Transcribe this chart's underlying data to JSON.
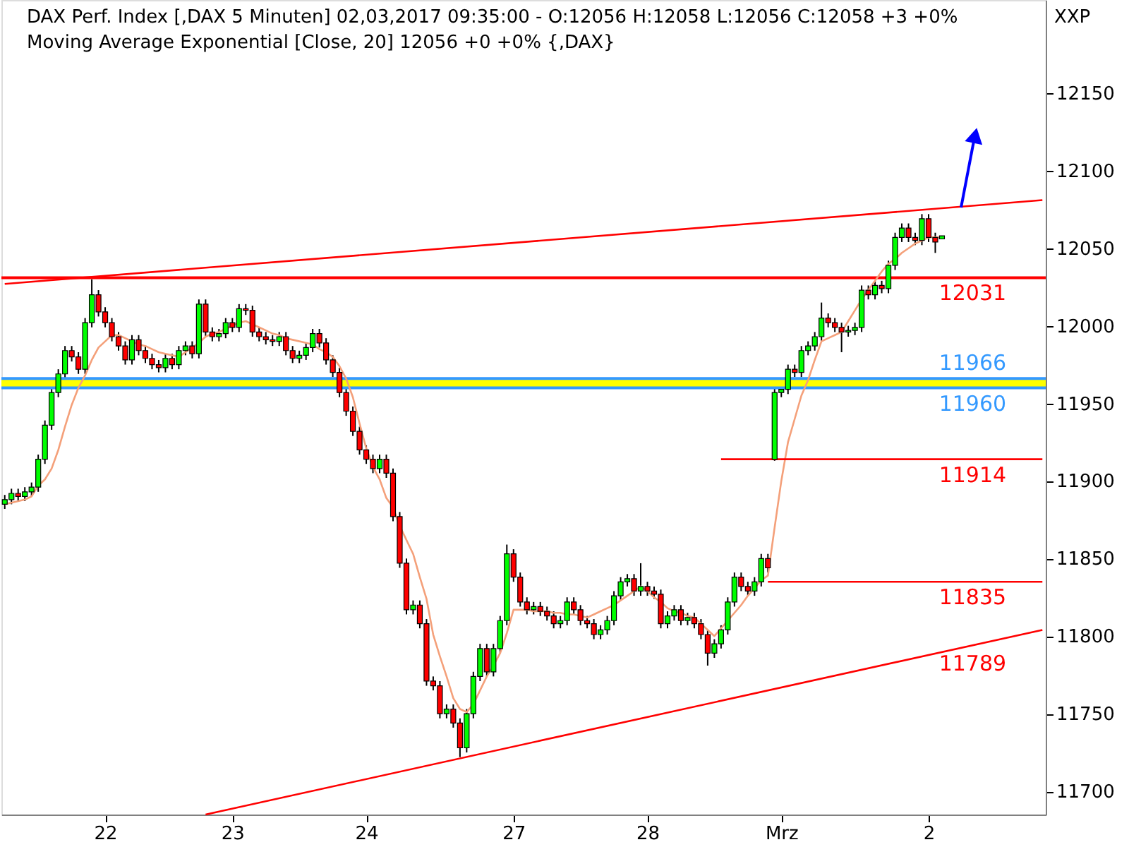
{
  "chart_data": {
    "type": "candlestick",
    "title": "DAX Perf. Index [,DAX  5 Minuten] 02,03,2017 09:35:00 - O:12056 H:12058 L:12056 C:12058 +3 +0%",
    "subtitle": "Moving Average Exponential [Close, 20] 12056 +0 +0% {,DAX}",
    "categories": [
      null,
      null,
      null,
      null,
      null,
      null,
      null,
      null,
      null,
      null,
      null,
      null,
      null,
      null,
      null,
      "22",
      null,
      null,
      null,
      null,
      null,
      null,
      null,
      null,
      null,
      null,
      null,
      null,
      null,
      null,
      null,
      null,
      null,
      null,
      "23",
      null,
      null,
      null,
      null,
      null,
      null,
      null,
      null,
      null,
      null,
      null,
      null,
      null,
      null,
      null,
      null,
      null,
      null,
      null,
      "24",
      null,
      null,
      null,
      null,
      null,
      null,
      null,
      null,
      null,
      null,
      null,
      null,
      null,
      null,
      null,
      null,
      null,
      null,
      null,
      null,
      null,
      "27",
      null,
      null,
      null,
      null,
      null,
      null,
      null,
      null,
      null,
      null,
      null,
      null,
      null,
      null,
      null,
      null,
      null,
      null,
      null,
      "28",
      null,
      null,
      null,
      null,
      null,
      null,
      null,
      null,
      null,
      null,
      null,
      null,
      null,
      null,
      null,
      null,
      null,
      null,
      null,
      "Mrz",
      null,
      null,
      null,
      null,
      null,
      null,
      null,
      null,
      null,
      null,
      null,
      null,
      null,
      null,
      null,
      null,
      null,
      null,
      null,
      null,
      null,
      "2",
      null,
      null,
      null,
      null,
      null,
      null,
      null,
      null,
      null,
      null,
      null,
      null,
      null,
      null,
      null,
      null,
      null
    ],
    "ohlc": [
      [
        11885,
        11891,
        11882,
        11888
      ],
      [
        11888,
        11895,
        11885,
        11892
      ],
      [
        11892,
        11895,
        11887,
        11890
      ],
      [
        11890,
        11896,
        11887,
        11893
      ],
      [
        11893,
        11899,
        11890,
        11896
      ],
      [
        11896,
        11917,
        11893,
        11914
      ],
      [
        11914,
        11939,
        11911,
        11936
      ],
      [
        11936,
        11960,
        11933,
        11957
      ],
      [
        11957,
        11972,
        11954,
        11969
      ],
      [
        11969,
        11987,
        11966,
        11984
      ],
      [
        11984,
        11987,
        11977,
        11980
      ],
      [
        11980,
        11983,
        11969,
        11972
      ],
      [
        11972,
        12005,
        11969,
        12002
      ],
      [
        12002,
        12030,
        11999,
        12020
      ],
      [
        12020,
        12023,
        12006,
        12009
      ],
      [
        12009,
        12012,
        11999,
        12002
      ],
      [
        12002,
        12005,
        11990,
        11993
      ],
      [
        11993,
        11996,
        11984,
        11987
      ],
      [
        11987,
        11990,
        11975,
        11978
      ],
      [
        11978,
        11994,
        11975,
        11991
      ],
      [
        11991,
        11994,
        11981,
        11984
      ],
      [
        11984,
        11987,
        11976,
        11979
      ],
      [
        11979,
        11982,
        11972,
        11975
      ],
      [
        11975,
        11978,
        11970,
        11973
      ],
      [
        11973,
        11982,
        11970,
        11979
      ],
      [
        11979,
        11982,
        11972,
        11975
      ],
      [
        11975,
        11987,
        11972,
        11984
      ],
      [
        11984,
        11990,
        11981,
        11987
      ],
      [
        11987,
        11990,
        11979,
        11982
      ],
      [
        11982,
        12017,
        11979,
        12014
      ],
      [
        12014,
        12017,
        11993,
        11996
      ],
      [
        11996,
        11999,
        11990,
        11993
      ],
      [
        11993,
        11998,
        11990,
        11995
      ],
      [
        11995,
        12005,
        11992,
        12002
      ],
      [
        12002,
        12005,
        11996,
        11999
      ],
      [
        11999,
        12014,
        11996,
        12011
      ],
      [
        12011,
        12014,
        12007,
        12010
      ],
      [
        12010,
        12013,
        11993,
        11996
      ],
      [
        11996,
        11999,
        11990,
        11993
      ],
      [
        11993,
        11996,
        11988,
        11991
      ],
      [
        11991,
        11994,
        11987,
        11990
      ],
      [
        11990,
        11996,
        11987,
        11993
      ],
      [
        11993,
        11996,
        11981,
        11984
      ],
      [
        11984,
        11987,
        11976,
        11979
      ],
      [
        11979,
        11984,
        11976,
        11981
      ],
      [
        11981,
        11989,
        11978,
        11986
      ],
      [
        11986,
        11998,
        11983,
        11995
      ],
      [
        11995,
        11998,
        11986,
        11989
      ],
      [
        11989,
        11992,
        11975,
        11978
      ],
      [
        11978,
        11981,
        11967,
        11970
      ],
      [
        11970,
        11973,
        11954,
        11957
      ],
      [
        11957,
        11960,
        11942,
        11945
      ],
      [
        11945,
        11948,
        11929,
        11932
      ],
      [
        11932,
        11935,
        11917,
        11920
      ],
      [
        11920,
        11923,
        11911,
        11914
      ],
      [
        11914,
        11917,
        11905,
        11908
      ],
      [
        11908,
        11917,
        11905,
        11914
      ],
      [
        11914,
        11917,
        11902,
        11905
      ],
      [
        11905,
        11908,
        11874,
        11877
      ],
      [
        11877,
        11880,
        11844,
        11847
      ],
      [
        11847,
        11850,
        11814,
        11817
      ],
      [
        11817,
        11823,
        11814,
        11820
      ],
      [
        11820,
        11823,
        11805,
        11808
      ],
      [
        11808,
        11811,
        11768,
        11771
      ],
      [
        11771,
        11774,
        11765,
        11768
      ],
      [
        11768,
        11771,
        11747,
        11750
      ],
      [
        11750,
        11756,
        11747,
        11753
      ],
      [
        11753,
        11756,
        11741,
        11744
      ],
      [
        11744,
        11747,
        11722,
        11728
      ],
      [
        11728,
        11753,
        11725,
        11750
      ],
      [
        11750,
        11777,
        11747,
        11774
      ],
      [
        11774,
        11795,
        11771,
        11792
      ],
      [
        11792,
        11795,
        11774,
        11777
      ],
      [
        11777,
        11795,
        11774,
        11792
      ],
      [
        11792,
        11813,
        11789,
        11810
      ],
      [
        11810,
        11859,
        11807,
        11853
      ],
      [
        11853,
        11856,
        11835,
        11838
      ],
      [
        11838,
        11841,
        11819,
        11822
      ],
      [
        11822,
        11825,
        11814,
        11817
      ],
      [
        11817,
        11822,
        11814,
        11819
      ],
      [
        11819,
        11822,
        11813,
        11816
      ],
      [
        11816,
        11819,
        11810,
        11813
      ],
      [
        11813,
        11816,
        11805,
        11808
      ],
      [
        11808,
        11813,
        11805,
        11810
      ],
      [
        11810,
        11825,
        11807,
        11822
      ],
      [
        11822,
        11825,
        11814,
        11817
      ],
      [
        11817,
        11820,
        11807,
        11810
      ],
      [
        11810,
        11813,
        11805,
        11808
      ],
      [
        11808,
        11811,
        11798,
        11801
      ],
      [
        11801,
        11807,
        11798,
        11804
      ],
      [
        11804,
        11813,
        11801,
        11810
      ],
      [
        11810,
        11829,
        11807,
        11826
      ],
      [
        11826,
        11838,
        11823,
        11835
      ],
      [
        11835,
        11840,
        11832,
        11837
      ],
      [
        11837,
        11840,
        11826,
        11829
      ],
      [
        11829,
        11847,
        11826,
        11832
      ],
      [
        11832,
        11835,
        11826,
        11829
      ],
      [
        11829,
        11832,
        11824,
        11827
      ],
      [
        11827,
        11830,
        11805,
        11808
      ],
      [
        11808,
        11816,
        11805,
        11813
      ],
      [
        11813,
        11820,
        11810,
        11817
      ],
      [
        11817,
        11820,
        11807,
        11810
      ],
      [
        11810,
        11815,
        11807,
        11812
      ],
      [
        11812,
        11815,
        11805,
        11808
      ],
      [
        11808,
        11811,
        11798,
        11801
      ],
      [
        11801,
        11804,
        11781,
        11789
      ],
      [
        11789,
        11798,
        11786,
        11795
      ],
      [
        11795,
        11807,
        11792,
        11804
      ],
      [
        11804,
        11825,
        11801,
        11822
      ],
      [
        11822,
        11841,
        11819,
        11838
      ],
      [
        11838,
        11841,
        11829,
        11832
      ],
      [
        11832,
        11835,
        11826,
        11829
      ],
      [
        11829,
        11838,
        11826,
        11835
      ],
      [
        11835,
        11853,
        11832,
        11850
      ],
      [
        11850,
        11853,
        11841,
        11844
      ],
      [
        11914,
        11960,
        11913,
        11957
      ],
      [
        11957,
        11962,
        11954,
        11959
      ],
      [
        11959,
        11975,
        11956,
        11972
      ],
      [
        11972,
        11975,
        11967,
        11970
      ],
      [
        11970,
        11987,
        11967,
        11984
      ],
      [
        11984,
        11990,
        11981,
        11987
      ],
      [
        11987,
        11996,
        11984,
        11993
      ],
      [
        11993,
        12015,
        11990,
        12005
      ],
      [
        12005,
        12008,
        11999,
        12002
      ],
      [
        12002,
        12005,
        11996,
        11999
      ],
      [
        11999,
        12002,
        11983,
        11996
      ],
      [
        11996,
        12000,
        11993,
        11997
      ],
      [
        11997,
        12002,
        11994,
        11999
      ],
      [
        11999,
        12026,
        11996,
        12023
      ],
      [
        12023,
        12026,
        12017,
        12020
      ],
      [
        12020,
        12029,
        12017,
        12026
      ],
      [
        12026,
        12029,
        12021,
        12024
      ],
      [
        12024,
        12042,
        12021,
        12039
      ],
      [
        12039,
        12060,
        12036,
        12057
      ],
      [
        12057,
        12066,
        12054,
        12063
      ],
      [
        12063,
        12066,
        12054,
        12057
      ],
      [
        12057,
        12060,
        12052,
        12055
      ],
      [
        12055,
        12072,
        12052,
        12069
      ],
      [
        12069,
        12072,
        12054,
        12057
      ],
      [
        12057,
        12060,
        12047,
        12054
      ],
      [
        12056,
        12058,
        12056,
        12058
      ],
      null,
      null,
      null,
      null,
      null,
      null,
      null,
      null,
      null,
      null,
      null,
      null,
      null,
      null,
      null
    ],
    "series": [
      {
        "type": "line",
        "color": "#f4a07a",
        "values": [
          11885,
          11886,
          11887,
          11888,
          11890,
          11897,
          11901,
          11908,
          11920,
          11935,
          11949,
          11960,
          11968,
          11978,
          11986,
          11990,
          11994,
          11994,
          11992,
          11990,
          11988,
          11987,
          11985,
          11983,
          11982,
          11981,
          11980,
          11983,
          11986,
          11989,
          11993,
          11995,
          11996,
          11998,
          12000,
          12002,
          12003,
          12001,
          11999,
          11997,
          11995,
          11994,
          11992,
          11991,
          11990,
          11989,
          11988,
          11985,
          11983,
          11980,
          11974,
          11966,
          11954,
          11937,
          11921,
          11909,
          11901,
          11889,
          11883,
          11871,
          11862,
          11853,
          11838,
          11824,
          11801,
          11787,
          11774,
          11760,
          11753,
          11751,
          11756,
          11765,
          11774,
          11781,
          11789,
          11802,
          11817,
          11817,
          11817,
          11816,
          11816,
          11816,
          11815,
          11815,
          11814,
          11814,
          11813,
          11812,
          11814,
          11816,
          11818,
          11820,
          11823,
          11826,
          11829,
          11832,
          11829,
          11825,
          11822,
          11818,
          11816,
          11815,
          11813,
          11812,
          11808,
          11804,
          11800,
          11805,
          11810,
          11815,
          11820,
          11826,
          11831,
          11836,
          11839,
          11870,
          11900,
          11925,
          11940,
          11955,
          11965,
          11978,
          11990,
          11992,
          11994,
          11996,
          12003,
          12010,
          12017,
          12023,
          12029,
          12035,
          12040,
          12043,
          12047,
          12050,
          12053,
          12055,
          12057,
          12057,
          12057,
          null,
          null,
          null,
          null,
          null,
          null,
          null,
          null,
          null,
          null,
          null,
          null,
          null,
          null,
          null
        ]
      },
      {
        "type": "line",
        "color": "#ff0000",
        "values": [
          12027,
          null,
          null,
          null,
          null,
          null,
          null,
          null,
          null,
          null,
          null,
          null,
          null,
          null,
          null,
          null,
          null,
          null,
          null,
          null,
          null,
          null,
          null,
          null,
          null,
          null,
          null,
          null,
          null,
          null,
          null,
          null,
          null,
          null,
          null,
          null,
          null,
          null,
          null,
          null,
          null,
          null,
          null,
          null,
          null,
          null,
          null,
          null,
          null,
          null,
          null,
          null,
          null,
          null,
          null,
          null,
          null,
          null,
          null,
          null,
          null,
          null,
          null,
          null,
          null,
          null,
          null,
          null,
          null,
          null,
          null,
          null,
          null,
          null,
          null,
          null,
          null,
          null,
          null,
          null,
          null,
          null,
          null,
          null,
          null,
          null,
          null,
          null,
          null,
          null,
          null,
          null,
          null,
          null,
          null,
          null,
          null,
          null,
          null,
          null,
          null,
          null,
          null,
          null,
          null,
          null,
          null,
          null,
          null,
          null,
          null,
          null,
          null,
          null,
          null,
          null,
          null,
          null,
          null,
          null,
          null,
          null,
          null,
          null,
          null,
          null,
          null,
          null,
          null,
          null,
          null,
          null,
          null,
          null,
          null,
          null,
          null,
          null,
          null,
          null,
          null,
          null,
          null,
          null,
          null,
          null,
          null,
          null,
          null,
          null,
          null,
          null,
          null,
          null,
          null,
          12081
        ]
      },
      {
        "type": "line",
        "color": "#ff0000",
        "values": [
          null,
          null,
          null,
          null,
          null,
          null,
          null,
          null,
          null,
          null,
          null,
          null,
          null,
          null,
          null,
          null,
          null,
          null,
          null,
          null,
          null,
          null,
          null,
          null,
          null,
          null,
          null,
          null,
          null,
          null,
          11685,
          null,
          null,
          null,
          null,
          null,
          null,
          null,
          null,
          null,
          null,
          null,
          null,
          null,
          null,
          null,
          null,
          null,
          null,
          null,
          null,
          null,
          null,
          null,
          null,
          null,
          null,
          null,
          null,
          null,
          null,
          null,
          null,
          null,
          null,
          null,
          null,
          null,
          null,
          null,
          null,
          null,
          null,
          null,
          null,
          null,
          null,
          null,
          null,
          null,
          null,
          null,
          null,
          null,
          null,
          null,
          null,
          null,
          null,
          null,
          null,
          null,
          null,
          null,
          null,
          null,
          null,
          null,
          null,
          null,
          null,
          null,
          null,
          null,
          null,
          null,
          null,
          null,
          null,
          null,
          null,
          null,
          null,
          null,
          null,
          null,
          null,
          null,
          null,
          null,
          null,
          null,
          null,
          null,
          null,
          null,
          null,
          null,
          null,
          null,
          null,
          null,
          null,
          null,
          null,
          null,
          null,
          null,
          null,
          null,
          null,
          null,
          null,
          null,
          null,
          null,
          null,
          null,
          null,
          null,
          null,
          null,
          null,
          null,
          null,
          11804
        ]
      },
      {
        "type": "line",
        "color": "#ff0000",
        "values": [
          null,
          null,
          null,
          null,
          null,
          null,
          null,
          null,
          null,
          null,
          null,
          null,
          null,
          null,
          null,
          null,
          null,
          null,
          null,
          null,
          null,
          null,
          null,
          null,
          null,
          null,
          null,
          null,
          null,
          null,
          null,
          null,
          null,
          null,
          null,
          null,
          null,
          null,
          null,
          null,
          null,
          null,
          null,
          null,
          null,
          null,
          null,
          null,
          null,
          null,
          null,
          null,
          null,
          null,
          null,
          null,
          null,
          null,
          null,
          null,
          null,
          null,
          null,
          null,
          null,
          null,
          null,
          null,
          null,
          null,
          null,
          null,
          null,
          null,
          null,
          null,
          null,
          null,
          null,
          null,
          null,
          null,
          null,
          null,
          null,
          null,
          null,
          null,
          null,
          null,
          null,
          null,
          null,
          null,
          null,
          null,
          null,
          null,
          null,
          null,
          null,
          null,
          null,
          null,
          null,
          null,
          null,
          11914,
          null,
          null,
          null,
          null,
          null,
          null,
          null,
          null,
          null,
          null,
          null,
          null,
          null,
          null,
          null,
          null,
          null,
          null,
          null,
          null,
          null,
          null,
          null,
          null,
          null,
          null,
          null,
          null,
          null,
          null,
          null,
          null,
          null,
          null,
          null,
          null,
          null,
          null,
          null,
          null,
          null,
          null,
          null,
          null,
          null,
          null,
          null,
          11914
        ]
      },
      {
        "type": "line",
        "color": "#ff0000",
        "values": [
          null,
          null,
          null,
          null,
          null,
          null,
          null,
          null,
          null,
          null,
          null,
          null,
          null,
          null,
          null,
          null,
          null,
          null,
          null,
          null,
          null,
          null,
          null,
          null,
          null,
          null,
          null,
          null,
          null,
          null,
          null,
          null,
          null,
          null,
          null,
          null,
          null,
          null,
          null,
          null,
          null,
          null,
          null,
          null,
          null,
          null,
          null,
          null,
          null,
          null,
          null,
          null,
          null,
          null,
          null,
          null,
          null,
          null,
          null,
          null,
          null,
          null,
          null,
          null,
          null,
          null,
          null,
          null,
          null,
          null,
          null,
          null,
          null,
          null,
          null,
          null,
          null,
          null,
          null,
          null,
          null,
          null,
          null,
          null,
          null,
          null,
          null,
          null,
          null,
          null,
          null,
          null,
          null,
          null,
          null,
          null,
          null,
          null,
          null,
          null,
          null,
          null,
          null,
          null,
          null,
          null,
          null,
          null,
          null,
          null,
          null,
          null,
          null,
          null,
          11835,
          null,
          null,
          null,
          null,
          null,
          null,
          null,
          null,
          null,
          null,
          null,
          null,
          null,
          null,
          null,
          null,
          null,
          null,
          null,
          null,
          null,
          null,
          null,
          null,
          null,
          null,
          null,
          null,
          null,
          null,
          null,
          null,
          null,
          null,
          null,
          null,
          null,
          null,
          null,
          null,
          11835
        ]
      }
    ],
    "ref_lines": [
      {
        "axis": "y",
        "value": 12031,
        "label": "12031",
        "color": "#ff0000"
      },
      {
        "axis": "y",
        "value": 11966,
        "label": "11966",
        "color": "#3399ff"
      },
      {
        "axis": "y",
        "value": 11960,
        "label": "11960",
        "color": "#3399ff"
      }
    ],
    "bands": [
      {
        "axis": "y",
        "from": 11960,
        "to": 11966,
        "color": "#ffff00"
      }
    ],
    "annotations": [
      "XXP",
      "11789",
      {
        "text": "11914",
        "y": 11914
      },
      {
        "text": "11835",
        "y": 11835
      }
    ],
    "ylim": [
      11685,
      12210
    ],
    "yticks": [
      11700,
      11750,
      11800,
      11850,
      11900,
      11950,
      12000,
      12050,
      12100,
      12150
    ],
    "grid": false,
    "marker": "none",
    "line_style": "solid"
  }
}
